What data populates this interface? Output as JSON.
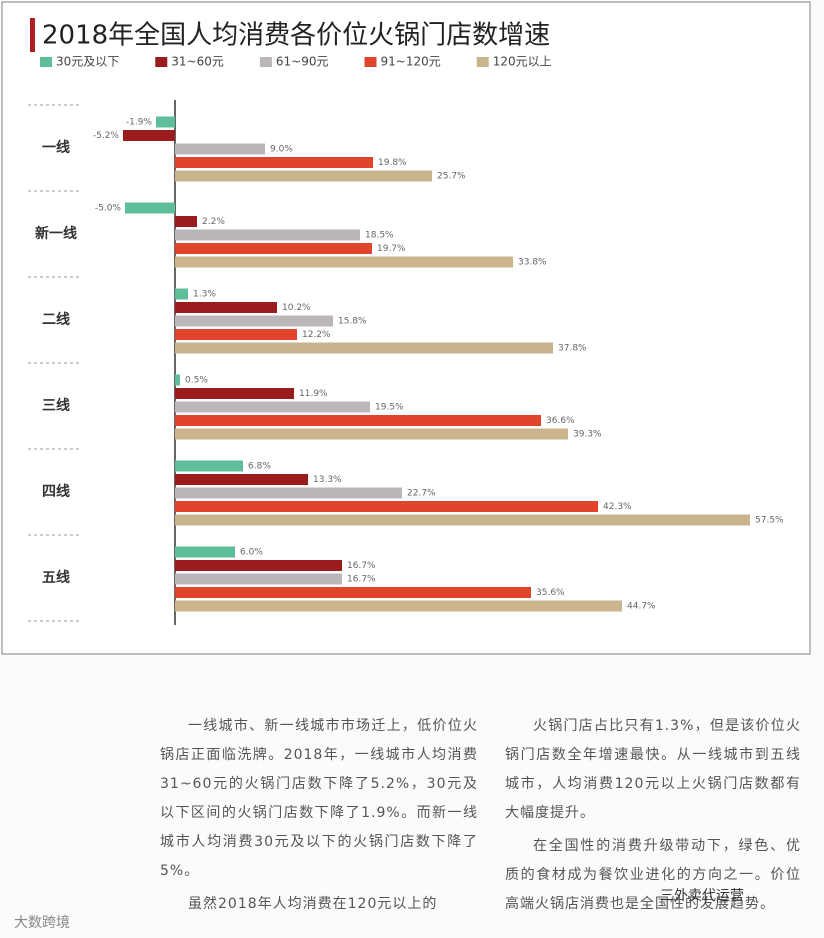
{
  "chart_data": {
    "type": "bar",
    "orientation": "horizontal",
    "title": "2018年全国人均消费各价位火锅门店数增速",
    "categories": [
      "一线",
      "新一线",
      "二线",
      "三线",
      "四线",
      "五线"
    ],
    "series": [
      {
        "name": "30元及以下",
        "color": "#5cbf9a",
        "values": [
          -1.9,
          -5.0,
          1.3,
          0.5,
          6.8,
          6.0
        ],
        "value_labels": [
          "-1.9%",
          "-5.0%",
          "1.3%",
          "0.5%",
          "6.8%",
          "6.0%"
        ]
      },
      {
        "name": "31~60元",
        "color": "#9b1c1c",
        "values": [
          -5.2,
          2.2,
          10.2,
          11.9,
          13.3,
          16.7
        ],
        "value_labels": [
          "-5.2%",
          "2.2%",
          "10.2%",
          "11.9%",
          "13.3%",
          "16.7%"
        ]
      },
      {
        "name": "61~90元",
        "color": "#bab6b9",
        "values": [
          9.0,
          18.5,
          15.8,
          19.5,
          22.7,
          16.7
        ],
        "value_labels": [
          "9.0%",
          "18.5%",
          "15.8%",
          "19.5%",
          "22.7%",
          "16.7%"
        ]
      },
      {
        "name": "91~120元",
        "color": "#e0442c",
        "values": [
          19.8,
          19.7,
          12.2,
          36.6,
          42.3,
          35.6
        ],
        "value_labels": [
          "19.8%",
          "19.7%",
          "12.2%",
          "36.6%",
          "42.3%",
          "35.6%"
        ]
      },
      {
        "name": "120元以上",
        "color": "#c9b48e",
        "values": [
          25.7,
          33.8,
          37.8,
          39.3,
          57.5,
          44.7
        ],
        "value_labels": [
          "25.7%",
          "33.8%",
          "37.8%",
          "39.3%",
          "57.5%",
          "44.7%"
        ]
      }
    ]
  },
  "article": {
    "left": [
      "一线城市、新一线城市市场迁上，低价位火锅店正面临洗牌。2018年，一线城市人均消费31~60元的火锅门店数下降了5.2%，30元及以下区间的火锅门店数下降了1.9%。而新一线城市人均消费30元及以下的火锅门店数下降了5%。",
      "虽然2018年人均消费在120元以上的"
    ],
    "right": [
      "火锅门店占比只有1.3%，但是该价位火锅门店数全年增速最快。从一线城市到五线城市，人均消费120元以上火锅门店数都有大幅度提升。",
      "在全国性的消费升级带动下，绿色、优质的食材成为餐饮业进化的方向之一。价位高端火锅店消费也是全国性的发展趋势。"
    ]
  },
  "watermarks": [
    "大数跨境",
    "三外卖代运营"
  ]
}
